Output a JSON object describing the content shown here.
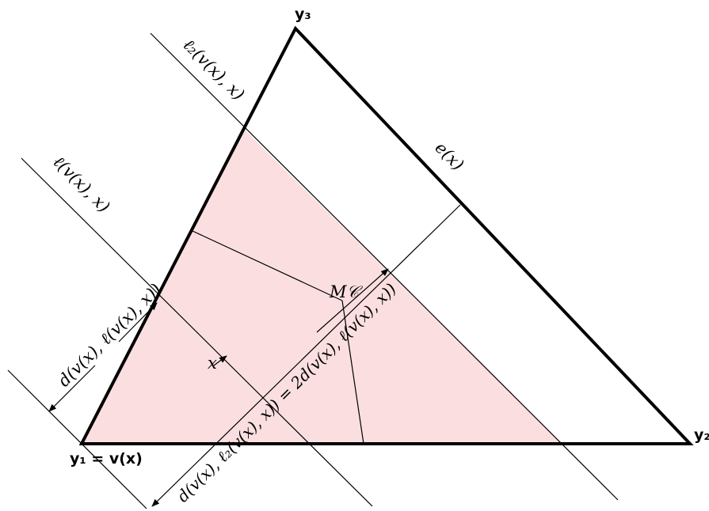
{
  "labels": {
    "y3": "y₃",
    "l2": "ℓ₂(v(x), x)",
    "e": "e(x)",
    "l": "ℓ(v(x), x)",
    "mc": "M𝒞",
    "d1": "d(v(x), ℓ(v(x), x))",
    "x": "x",
    "y1": "y₁ = v(x)",
    "y2": "y₂",
    "d2": "d(v(x), ℓ₂(v(x), x)) = 2d(v(x), ℓ(v(x), x))"
  }
}
